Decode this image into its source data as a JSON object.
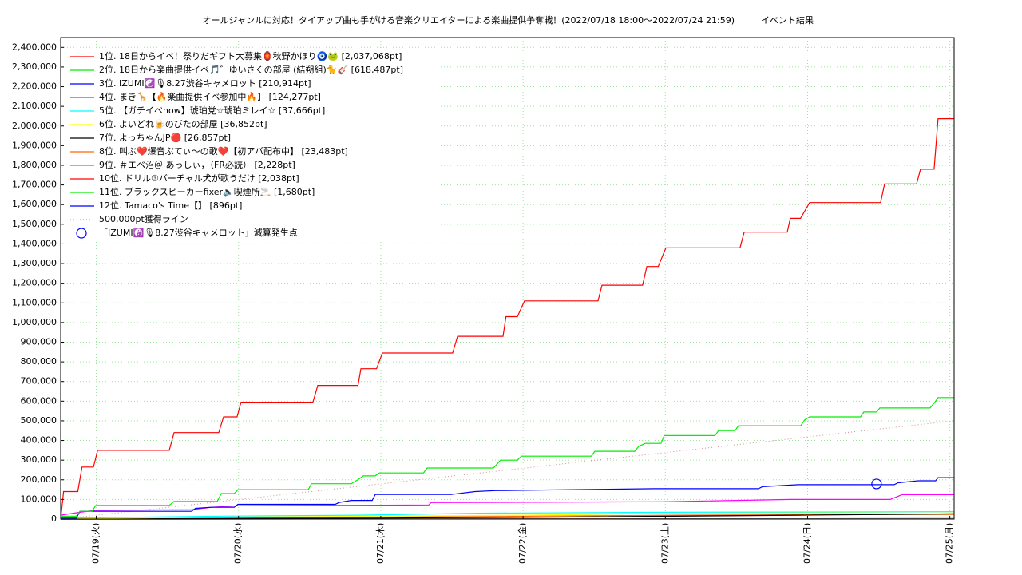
{
  "chart_data": {
    "type": "line",
    "title": "オールジャンルに対応！タイアップ曲も手がける音楽クリエイターによる楽曲提供争奪戦！(2022/07/18 18:00～2022/07/24 21:59)",
    "subtitle": "イベント結果",
    "xlim": [
      18.75,
      25.03
    ],
    "xticks": [
      {
        "value": 19,
        "label": "07/19(火)"
      },
      {
        "value": 20,
        "label": "07/20(水)"
      },
      {
        "value": 21,
        "label": "07/21(木)"
      },
      {
        "value": 22,
        "label": "07/22(金)"
      },
      {
        "value": 23,
        "label": "07/23(土)"
      },
      {
        "value": 24,
        "label": "07/24(日)"
      },
      {
        "value": 25,
        "label": "07/25(月)"
      }
    ],
    "ylim": [
      0,
      2450000
    ],
    "yticks": [
      0,
      {
        "value": 100000,
        "label": "100,000"
      },
      {
        "value": 200000,
        "label": "200,000"
      },
      {
        "value": 300000,
        "label": "300,000"
      },
      {
        "value": 400000,
        "label": "400,000"
      },
      {
        "value": 500000,
        "label": "500,000"
      },
      {
        "value": 600000,
        "label": "600,000"
      },
      {
        "value": 700000,
        "label": "700,000"
      },
      {
        "value": 800000,
        "label": "800,000"
      },
      {
        "value": 900000,
        "label": "900,000"
      },
      {
        "value": 1000000,
        "label": "1,000,000"
      },
      {
        "value": 1100000,
        "label": "1,100,000"
      },
      {
        "value": 1200000,
        "label": "1,200,000"
      },
      {
        "value": 1300000,
        "label": "1,300,000"
      },
      {
        "value": 1400000,
        "label": "1,400,000"
      },
      {
        "value": 1500000,
        "label": "1,500,000"
      },
      {
        "value": 1600000,
        "label": "1,600,000"
      },
      {
        "value": 1700000,
        "label": "1,700,000"
      },
      {
        "value": 1800000,
        "label": "1,800,000"
      },
      {
        "value": 1900000,
        "label": "1,900,000"
      },
      {
        "value": 2000000,
        "label": "2,000,000"
      },
      {
        "value": 2100000,
        "label": "2,100,000"
      },
      {
        "value": 2200000,
        "label": "2,200,000"
      },
      {
        "value": 2300000,
        "label": "2,300,000"
      },
      {
        "value": 2400000,
        "label": "2,400,000"
      }
    ],
    "grid": true,
    "legend": "upper left",
    "series": [
      {
        "name": "1位. 18日からイベ！祭りだギフト大募集🏮秋野かほり🧿🐸 [2,037,068pt]",
        "color": "#ff0000",
        "x": [
          18.75,
          18.77,
          18.87,
          18.9,
          18.98,
          19.01,
          19.513,
          19.547,
          19.861,
          19.895,
          19.99,
          20.018,
          20.523,
          20.557,
          20.84,
          20.86,
          20.97,
          21.011,
          21.505,
          21.54,
          21.859,
          21.88,
          21.96,
          22.01,
          22.527,
          22.555,
          22.84,
          22.87,
          22.95,
          23.004,
          23.525,
          23.554,
          23.857,
          23.879,
          23.95,
          24.014,
          24.513,
          24.541,
          24.766,
          24.794,
          24.889,
          24.917,
          25.03
        ],
        "values": [
          0,
          140000,
          140000,
          265000,
          265000,
          350000,
          350000,
          440000,
          440000,
          520000,
          520000,
          595000,
          595000,
          680000,
          680000,
          765000,
          765000,
          845000,
          845000,
          930000,
          930000,
          1030000,
          1030000,
          1110000,
          1110000,
          1190000,
          1190000,
          1285000,
          1285000,
          1380000,
          1380000,
          1460000,
          1460000,
          1530000,
          1530000,
          1610000,
          1610000,
          1705000,
          1705000,
          1780000,
          1780000,
          2037068,
          2037068
        ]
      },
      {
        "name": "2位. 18日から楽曲提供イベ🎵゛ゆいさくの部屋 (結朔組)🐈🎸 [618,487pt]",
        "color": "#00ee00",
        "x": [
          18.75,
          18.86,
          18.885,
          18.97,
          18.997,
          19.513,
          19.547,
          19.85,
          19.88,
          19.97,
          19.996,
          20.49,
          20.512,
          20.793,
          20.838,
          20.877,
          20.96,
          20.989,
          21.3,
          21.326,
          21.792,
          21.842,
          21.96,
          21.988,
          22.48,
          22.504,
          22.785,
          22.813,
          22.858,
          22.97,
          22.992,
          23.35,
          23.374,
          23.49,
          23.514,
          23.952,
          23.98,
          24.014,
          24.373,
          24.395,
          24.485,
          24.508,
          24.861,
          24.9,
          24.917,
          25.03
        ],
        "values": [
          15000,
          15000,
          40000,
          40000,
          70000,
          70000,
          90000,
          90000,
          130000,
          130000,
          150000,
          150000,
          180000,
          180000,
          200000,
          220000,
          220000,
          235000,
          235000,
          260000,
          260000,
          300000,
          300000,
          320000,
          320000,
          345000,
          345000,
          370000,
          385000,
          385000,
          425000,
          425000,
          450000,
          450000,
          475000,
          475000,
          505000,
          520000,
          520000,
          545000,
          545000,
          565000,
          565000,
          600000,
          618487,
          618487
        ]
      },
      {
        "name": "3位. IZUMI☯️🎙8.27渋谷キャメロット [210,914pt]",
        "color": "#0000ff",
        "x": [
          18.75,
          18.86,
          18.885,
          19.67,
          19.698,
          19.81,
          19.97,
          19.996,
          20.68,
          20.708,
          20.793,
          20.94,
          20.961,
          21.494,
          21.662,
          21.803,
          22.925,
          23.655,
          23.683,
          23.935,
          24.608,
          24.637,
          24.777,
          24.9,
          24.917,
          25.03
        ],
        "values": [
          5000,
          5000,
          40000,
          40000,
          55000,
          60000,
          60000,
          75000,
          75000,
          85000,
          95000,
          95000,
          125000,
          125000,
          140000,
          145000,
          155000,
          155000,
          165000,
          175000,
          175000,
          185000,
          195000,
          195000,
          210914,
          210914
        ]
      },
      {
        "name": "4位. まき🦒【🔥楽曲提供イベ参加中🔥】 [124,277pt]",
        "color": "#ff00ff",
        "x": [
          18.75,
          18.885,
          18.997,
          19.67,
          19.81,
          19.996,
          21.337,
          21.354,
          22.981,
          23.879,
          24.58,
          24.665,
          25.03
        ],
        "values": [
          20000,
          35000,
          45000,
          48000,
          60000,
          68000,
          72000,
          84000,
          88000,
          100000,
          100000,
          124277,
          124277
        ]
      },
      {
        "name": "5位. 【ガチイベnow】琥珀党☆琥珀ミレイ☆ [37,666pt]",
        "color": "#00ffff",
        "x": [
          18.75,
          19.88,
          20.84,
          21.69,
          22.981,
          25.03
        ],
        "values": [
          5000,
          15000,
          20000,
          30000,
          35000,
          37666
        ]
      },
      {
        "name": "6位. よいどれ🍺のびたの部屋 [36,852pt]",
        "color": "#ffff00",
        "x": [
          18.75,
          20.0,
          22.0,
          23.1,
          24.777,
          25.03
        ],
        "values": [
          2000,
          10000,
          20000,
          30000,
          36852,
          36852
        ]
      },
      {
        "name": "7位. よっちゃんJP🔴 [26,857pt]",
        "color": "#000000",
        "x": [
          18.75,
          20.96,
          22.25,
          23.935,
          25.03
        ],
        "values": [
          0,
          5000,
          10000,
          20000,
          26857
        ]
      },
      {
        "name": "8位. 叫ぶ❤️爆音ぷてぃ〜の歌❤️【初アバ配布中】 [23,483pt]",
        "color": "#ff6600",
        "x": [
          18.75,
          21.1,
          23.1,
          24.58,
          25.03
        ],
        "values": [
          0,
          10000,
          20000,
          23483,
          23483
        ]
      },
      {
        "name": "9位. ＃エベ沼＠ あっしぃ，（FR必読） [2,228pt]",
        "color": "#808080",
        "x": [
          18.75,
          25.03
        ],
        "values": [
          0,
          2228
        ]
      },
      {
        "name": "10位. ドリル③バーチャル犬が歌うだけ [2,038pt]",
        "color": "#ff0000",
        "x": [
          18.75,
          25.03
        ],
        "values": [
          0,
          2038
        ]
      },
      {
        "name": "11位. ブラックスピーカーfixer🔈喫煙所🚬 [1,680pt]",
        "color": "#00ee00",
        "x": [
          18.75,
          25.03
        ],
        "values": [
          0,
          1680
        ]
      },
      {
        "name": "12位. Tamaco's Time【】 [896pt]",
        "color": "#0000ff",
        "x": [
          18.75,
          25.03
        ],
        "values": [
          0,
          896
        ]
      },
      {
        "name": "500,000pt獲得ライン",
        "color": "#d09090",
        "style": "dotted",
        "x": [
          18.75,
          25.03
        ],
        "values": [
          0,
          500000
        ]
      },
      {
        "name": "「IZUMI☯️🎙8.27渋谷キャメロット」減算発生点",
        "color": "#0000ff",
        "style": "circle",
        "x": [
          24.485
        ],
        "values": [
          179000
        ]
      }
    ]
  }
}
